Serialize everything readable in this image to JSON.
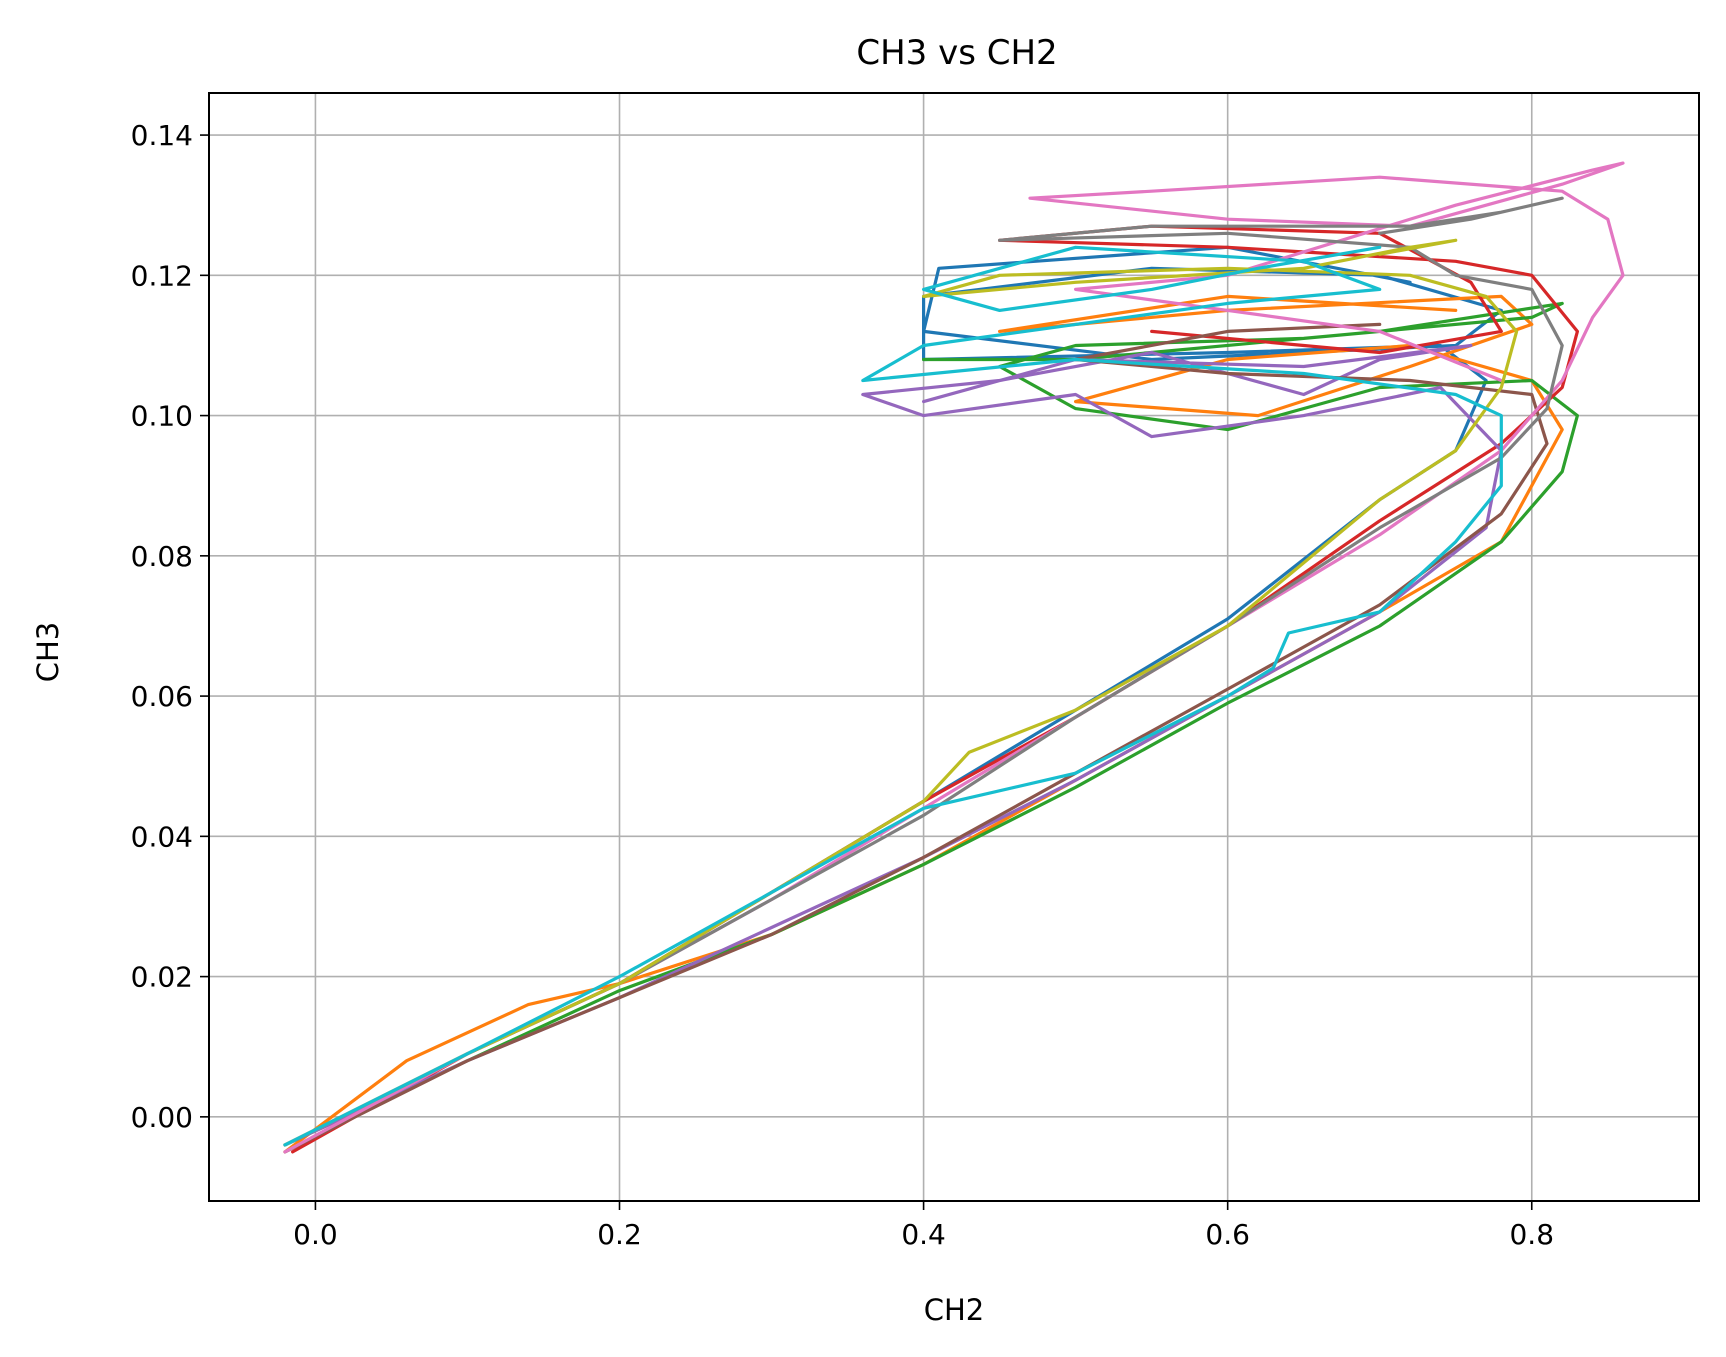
{
  "chart_data": {
    "type": "line",
    "title": "CH3 vs CH2",
    "xlabel": "CH2",
    "ylabel": "CH3",
    "xlim": [
      -0.07,
      0.91
    ],
    "ylim": [
      -0.012,
      0.146
    ],
    "grid": true,
    "legend": "none",
    "x_ticks": [
      "0.0",
      "0.2",
      "0.4",
      "0.6",
      "0.8"
    ],
    "y_ticks": [
      "0.00",
      "0.02",
      "0.04",
      "0.06",
      "0.08",
      "0.10",
      "0.12",
      "0.14"
    ],
    "series": [
      {
        "color": "#1f77b4",
        "points": [
          [
            -0.02,
            -0.004
          ],
          [
            0.1,
            0.009
          ],
          [
            0.2,
            0.019
          ],
          [
            0.3,
            0.032
          ],
          [
            0.4,
            0.045
          ],
          [
            0.5,
            0.058
          ],
          [
            0.6,
            0.071
          ],
          [
            0.7,
            0.088
          ],
          [
            0.75,
            0.095
          ],
          [
            0.77,
            0.105
          ],
          [
            0.74,
            0.11
          ],
          [
            0.6,
            0.109
          ],
          [
            0.4,
            0.108
          ],
          [
            0.4,
            0.117
          ],
          [
            0.55,
            0.121
          ],
          [
            0.7,
            0.12
          ],
          [
            0.78,
            0.115
          ],
          [
            0.75,
            0.11
          ],
          [
            0.55,
            0.108
          ],
          [
            0.4,
            0.112
          ],
          [
            0.41,
            0.121
          ],
          [
            0.6,
            0.124
          ],
          [
            0.72,
            0.119
          ]
        ]
      },
      {
        "color": "#ff7f0e",
        "points": [
          [
            -0.02,
            -0.005
          ],
          [
            0.06,
            0.008
          ],
          [
            0.14,
            0.016
          ],
          [
            0.2,
            0.019
          ],
          [
            0.3,
            0.026
          ],
          [
            0.4,
            0.036
          ],
          [
            0.5,
            0.048
          ],
          [
            0.6,
            0.06
          ],
          [
            0.7,
            0.072
          ],
          [
            0.78,
            0.082
          ],
          [
            0.82,
            0.098
          ],
          [
            0.8,
            0.105
          ],
          [
            0.72,
            0.11
          ],
          [
            0.6,
            0.108
          ],
          [
            0.5,
            0.102
          ],
          [
            0.62,
            0.1
          ],
          [
            0.72,
            0.107
          ],
          [
            0.8,
            0.113
          ],
          [
            0.78,
            0.117
          ],
          [
            0.6,
            0.115
          ],
          [
            0.45,
            0.112
          ],
          [
            0.6,
            0.117
          ],
          [
            0.75,
            0.115
          ]
        ]
      },
      {
        "color": "#2ca02c",
        "points": [
          [
            -0.02,
            -0.004
          ],
          [
            0.1,
            0.008
          ],
          [
            0.2,
            0.018
          ],
          [
            0.3,
            0.026
          ],
          [
            0.4,
            0.036
          ],
          [
            0.5,
            0.047
          ],
          [
            0.6,
            0.059
          ],
          [
            0.7,
            0.07
          ],
          [
            0.78,
            0.082
          ],
          [
            0.82,
            0.092
          ],
          [
            0.83,
            0.1
          ],
          [
            0.8,
            0.105
          ],
          [
            0.7,
            0.104
          ],
          [
            0.6,
            0.098
          ],
          [
            0.5,
            0.101
          ],
          [
            0.45,
            0.107
          ],
          [
            0.5,
            0.11
          ],
          [
            0.65,
            0.111
          ],
          [
            0.8,
            0.114
          ],
          [
            0.82,
            0.116
          ],
          [
            0.7,
            0.112
          ],
          [
            0.5,
            0.108
          ],
          [
            0.4,
            0.108
          ]
        ]
      },
      {
        "color": "#d62728",
        "points": [
          [
            -0.015,
            -0.005
          ],
          [
            0.1,
            0.009
          ],
          [
            0.2,
            0.019
          ],
          [
            0.3,
            0.032
          ],
          [
            0.4,
            0.045
          ],
          [
            0.5,
            0.057
          ],
          [
            0.6,
            0.07
          ],
          [
            0.7,
            0.085
          ],
          [
            0.78,
            0.096
          ],
          [
            0.82,
            0.104
          ],
          [
            0.83,
            0.112
          ],
          [
            0.8,
            0.12
          ],
          [
            0.75,
            0.122
          ],
          [
            0.6,
            0.124
          ],
          [
            0.45,
            0.125
          ],
          [
            0.55,
            0.127
          ],
          [
            0.7,
            0.126
          ],
          [
            0.76,
            0.119
          ],
          [
            0.78,
            0.112
          ],
          [
            0.7,
            0.109
          ],
          [
            0.55,
            0.112
          ]
        ]
      },
      {
        "color": "#9467bd",
        "points": [
          [
            -0.02,
            -0.004
          ],
          [
            0.1,
            0.008
          ],
          [
            0.2,
            0.017
          ],
          [
            0.3,
            0.027
          ],
          [
            0.4,
            0.037
          ],
          [
            0.5,
            0.048
          ],
          [
            0.6,
            0.06
          ],
          [
            0.7,
            0.072
          ],
          [
            0.77,
            0.084
          ],
          [
            0.78,
            0.095
          ],
          [
            0.74,
            0.104
          ],
          [
            0.65,
            0.1
          ],
          [
            0.55,
            0.097
          ],
          [
            0.5,
            0.103
          ],
          [
            0.4,
            0.1
          ],
          [
            0.36,
            0.103
          ],
          [
            0.45,
            0.105
          ],
          [
            0.55,
            0.109
          ],
          [
            0.65,
            0.103
          ],
          [
            0.7,
            0.108
          ],
          [
            0.76,
            0.11
          ],
          [
            0.65,
            0.107
          ],
          [
            0.5,
            0.108
          ],
          [
            0.4,
            0.102
          ]
        ]
      },
      {
        "color": "#8c564b",
        "points": [
          [
            -0.02,
            -0.005
          ],
          [
            0.1,
            0.008
          ],
          [
            0.2,
            0.017
          ],
          [
            0.3,
            0.026
          ],
          [
            0.4,
            0.037
          ],
          [
            0.5,
            0.049
          ],
          [
            0.6,
            0.061
          ],
          [
            0.7,
            0.073
          ],
          [
            0.78,
            0.086
          ],
          [
            0.81,
            0.096
          ],
          [
            0.8,
            0.103
          ],
          [
            0.72,
            0.105
          ],
          [
            0.6,
            0.106
          ],
          [
            0.5,
            0.108
          ],
          [
            0.6,
            0.112
          ],
          [
            0.7,
            0.113
          ]
        ]
      },
      {
        "color": "#e377c2",
        "points": [
          [
            -0.02,
            -0.005
          ],
          [
            0.1,
            0.009
          ],
          [
            0.2,
            0.019
          ],
          [
            0.3,
            0.031
          ],
          [
            0.4,
            0.044
          ],
          [
            0.5,
            0.057
          ],
          [
            0.6,
            0.07
          ],
          [
            0.7,
            0.083
          ],
          [
            0.78,
            0.095
          ],
          [
            0.82,
            0.105
          ],
          [
            0.84,
            0.114
          ],
          [
            0.86,
            0.12
          ],
          [
            0.85,
            0.128
          ],
          [
            0.82,
            0.132
          ],
          [
            0.7,
            0.134
          ],
          [
            0.55,
            0.132
          ],
          [
            0.47,
            0.131
          ],
          [
            0.6,
            0.128
          ],
          [
            0.72,
            0.127
          ],
          [
            0.82,
            0.133
          ],
          [
            0.86,
            0.136
          ],
          [
            0.84,
            0.135
          ],
          [
            0.75,
            0.13
          ],
          [
            0.6,
            0.12
          ],
          [
            0.5,
            0.118
          ],
          [
            0.6,
            0.115
          ],
          [
            0.7,
            0.112
          ],
          [
            0.78,
            0.105
          ]
        ]
      },
      {
        "color": "#7f7f7f",
        "points": [
          [
            -0.02,
            -0.004
          ],
          [
            0.1,
            0.009
          ],
          [
            0.2,
            0.019
          ],
          [
            0.3,
            0.031
          ],
          [
            0.4,
            0.043
          ],
          [
            0.5,
            0.057
          ],
          [
            0.6,
            0.07
          ],
          [
            0.7,
            0.084
          ],
          [
            0.78,
            0.094
          ],
          [
            0.81,
            0.101
          ],
          [
            0.82,
            0.11
          ],
          [
            0.8,
            0.118
          ],
          [
            0.75,
            0.12
          ],
          [
            0.72,
            0.124
          ],
          [
            0.6,
            0.126
          ],
          [
            0.45,
            0.125
          ],
          [
            0.55,
            0.127
          ],
          [
            0.72,
            0.127
          ],
          [
            0.78,
            0.129
          ],
          [
            0.82,
            0.131
          ],
          [
            0.76,
            0.128
          ],
          [
            0.7,
            0.126
          ]
        ]
      },
      {
        "color": "#bcbd22",
        "points": [
          [
            -0.02,
            -0.004
          ],
          [
            0.1,
            0.009
          ],
          [
            0.2,
            0.019
          ],
          [
            0.3,
            0.032
          ],
          [
            0.4,
            0.045
          ],
          [
            0.43,
            0.052
          ],
          [
            0.5,
            0.058
          ],
          [
            0.6,
            0.07
          ],
          [
            0.7,
            0.088
          ],
          [
            0.75,
            0.095
          ],
          [
            0.78,
            0.104
          ],
          [
            0.79,
            0.112
          ],
          [
            0.77,
            0.117
          ],
          [
            0.72,
            0.12
          ],
          [
            0.6,
            0.121
          ],
          [
            0.45,
            0.12
          ],
          [
            0.4,
            0.117
          ],
          [
            0.5,
            0.119
          ],
          [
            0.65,
            0.121
          ],
          [
            0.72,
            0.124
          ],
          [
            0.75,
            0.125
          ],
          [
            0.7,
            0.123
          ]
        ]
      },
      {
        "color": "#17becf",
        "points": [
          [
            -0.02,
            -0.004
          ],
          [
            0.1,
            0.009
          ],
          [
            0.2,
            0.02
          ],
          [
            0.3,
            0.032
          ],
          [
            0.4,
            0.044
          ],
          [
            0.5,
            0.049
          ],
          [
            0.6,
            0.06
          ],
          [
            0.63,
            0.064
          ],
          [
            0.64,
            0.069
          ],
          [
            0.7,
            0.072
          ],
          [
            0.75,
            0.082
          ],
          [
            0.78,
            0.09
          ],
          [
            0.78,
            0.1
          ],
          [
            0.75,
            0.103
          ],
          [
            0.65,
            0.106
          ],
          [
            0.5,
            0.108
          ],
          [
            0.36,
            0.105
          ],
          [
            0.4,
            0.11
          ],
          [
            0.5,
            0.113
          ],
          [
            0.6,
            0.116
          ],
          [
            0.7,
            0.118
          ],
          [
            0.65,
            0.122
          ],
          [
            0.5,
            0.124
          ],
          [
            0.4,
            0.118
          ],
          [
            0.45,
            0.115
          ],
          [
            0.55,
            0.118
          ],
          [
            0.62,
            0.121
          ],
          [
            0.7,
            0.124
          ]
        ]
      }
    ]
  }
}
